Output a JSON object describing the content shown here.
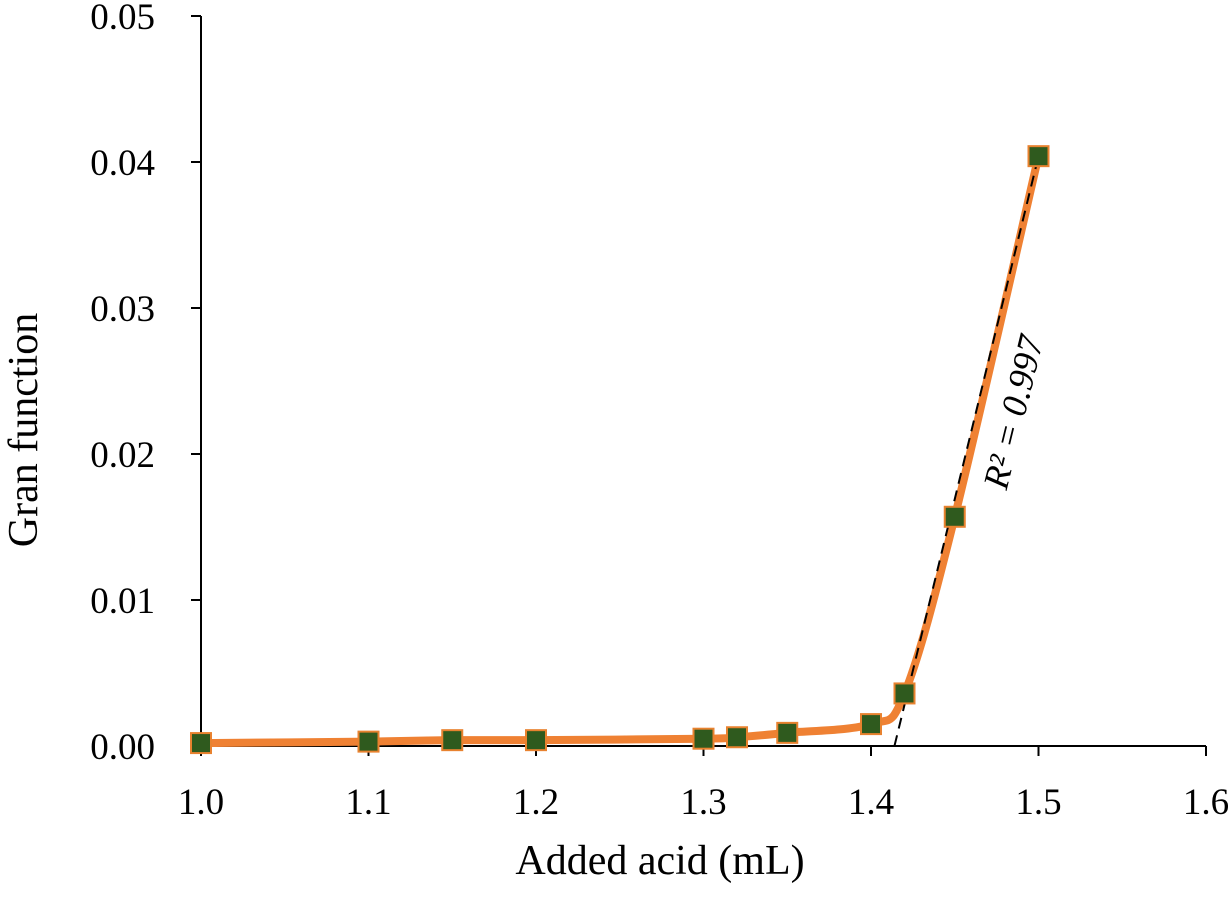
{
  "chart_data": {
    "type": "scatter",
    "title": "",
    "xlabel": "Added acid (mL)",
    "ylabel": "Gran function",
    "xlim": [
      1.0,
      1.6
    ],
    "ylim": [
      0.0,
      0.05
    ],
    "x_ticks": [
      "1.0",
      "1.1",
      "1.2",
      "1.3",
      "1.4",
      "1.5",
      "1.6"
    ],
    "y_ticks": [
      "0.00",
      "0.01",
      "0.02",
      "0.03",
      "0.04",
      "0.05"
    ],
    "grid": false,
    "legend": "none",
    "series": [
      {
        "points": [
          {
            "x": 1.0,
            "y": 0.0002
          },
          {
            "x": 1.1,
            "y": 0.0003
          },
          {
            "x": 1.15,
            "y": 0.0004
          },
          {
            "x": 1.2,
            "y": 0.0004
          },
          {
            "x": 1.3,
            "y": 0.0005
          },
          {
            "x": 1.32,
            "y": 0.0006
          },
          {
            "x": 1.35,
            "y": 0.0009
          },
          {
            "x": 1.4,
            "y": 0.0015
          },
          {
            "x": 1.42,
            "y": 0.0036
          },
          {
            "x": 1.45,
            "y": 0.0157
          },
          {
            "x": 1.5,
            "y": 0.0404
          }
        ],
        "marker_color": "#2f5a1e",
        "marker_edge_color": "#e8822f",
        "line_color": "#ef8133"
      }
    ],
    "trendline": {
      "style": "dashed",
      "color": "#000000",
      "points": [
        {
          "x": 1.414,
          "y": 0.0
        },
        {
          "x": 1.5,
          "y": 0.0404
        }
      ],
      "label": "R² = 0.997"
    }
  }
}
